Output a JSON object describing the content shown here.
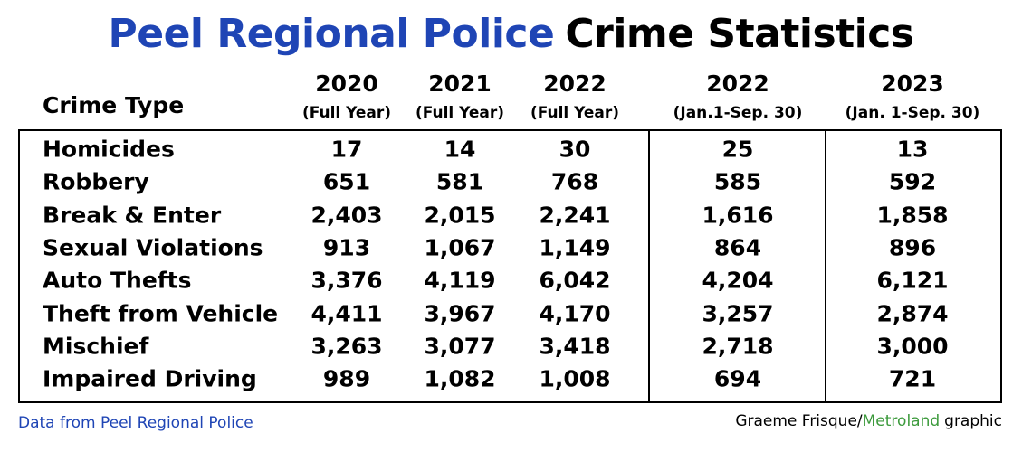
{
  "title": {
    "agency": "Peel Regional Police",
    "rest": "Crime Statistics"
  },
  "table": {
    "label_header": "Crime Type",
    "columns": [
      {
        "year": "2020",
        "note": "(Full Year)"
      },
      {
        "year": "2021",
        "note": "(Full Year)"
      },
      {
        "year": "2022",
        "note": "(Full Year)"
      },
      {
        "year": "2022",
        "note": "(Jan.1-Sep. 30)"
      },
      {
        "year": "2023",
        "note": "(Jan. 1-Sep. 30)"
      }
    ],
    "rows": [
      [
        "Homicides",
        "17",
        "14",
        "30",
        "25",
        "13"
      ],
      [
        "Robbery",
        "651",
        "581",
        "768",
        "585",
        "592"
      ],
      [
        "Break & Enter",
        "2,403",
        "2,015",
        "2,241",
        "1,616",
        "1,858"
      ],
      [
        "Sexual Violations",
        "913",
        "1,067",
        "1,149",
        "864",
        "896"
      ],
      [
        "Auto Thefts",
        "3,376",
        "4,119",
        "6,042",
        "4,204",
        "6,121"
      ],
      [
        "Theft from Vehicle",
        "4,411",
        "3,967",
        "4,170",
        "3,257",
        "2,874"
      ],
      [
        "Mischief",
        "3,263",
        "3,077",
        "3,418",
        "2,718",
        "3,000"
      ],
      [
        "Impaired Driving",
        "989",
        "1,082",
        "1,008",
        "694",
        "721"
      ]
    ]
  },
  "footer": {
    "source": "Data from Peel Regional Police",
    "credit": {
      "author": "Graeme Frisque/",
      "outlet": "Metroland",
      "suffix": "graphic"
    }
  }
}
